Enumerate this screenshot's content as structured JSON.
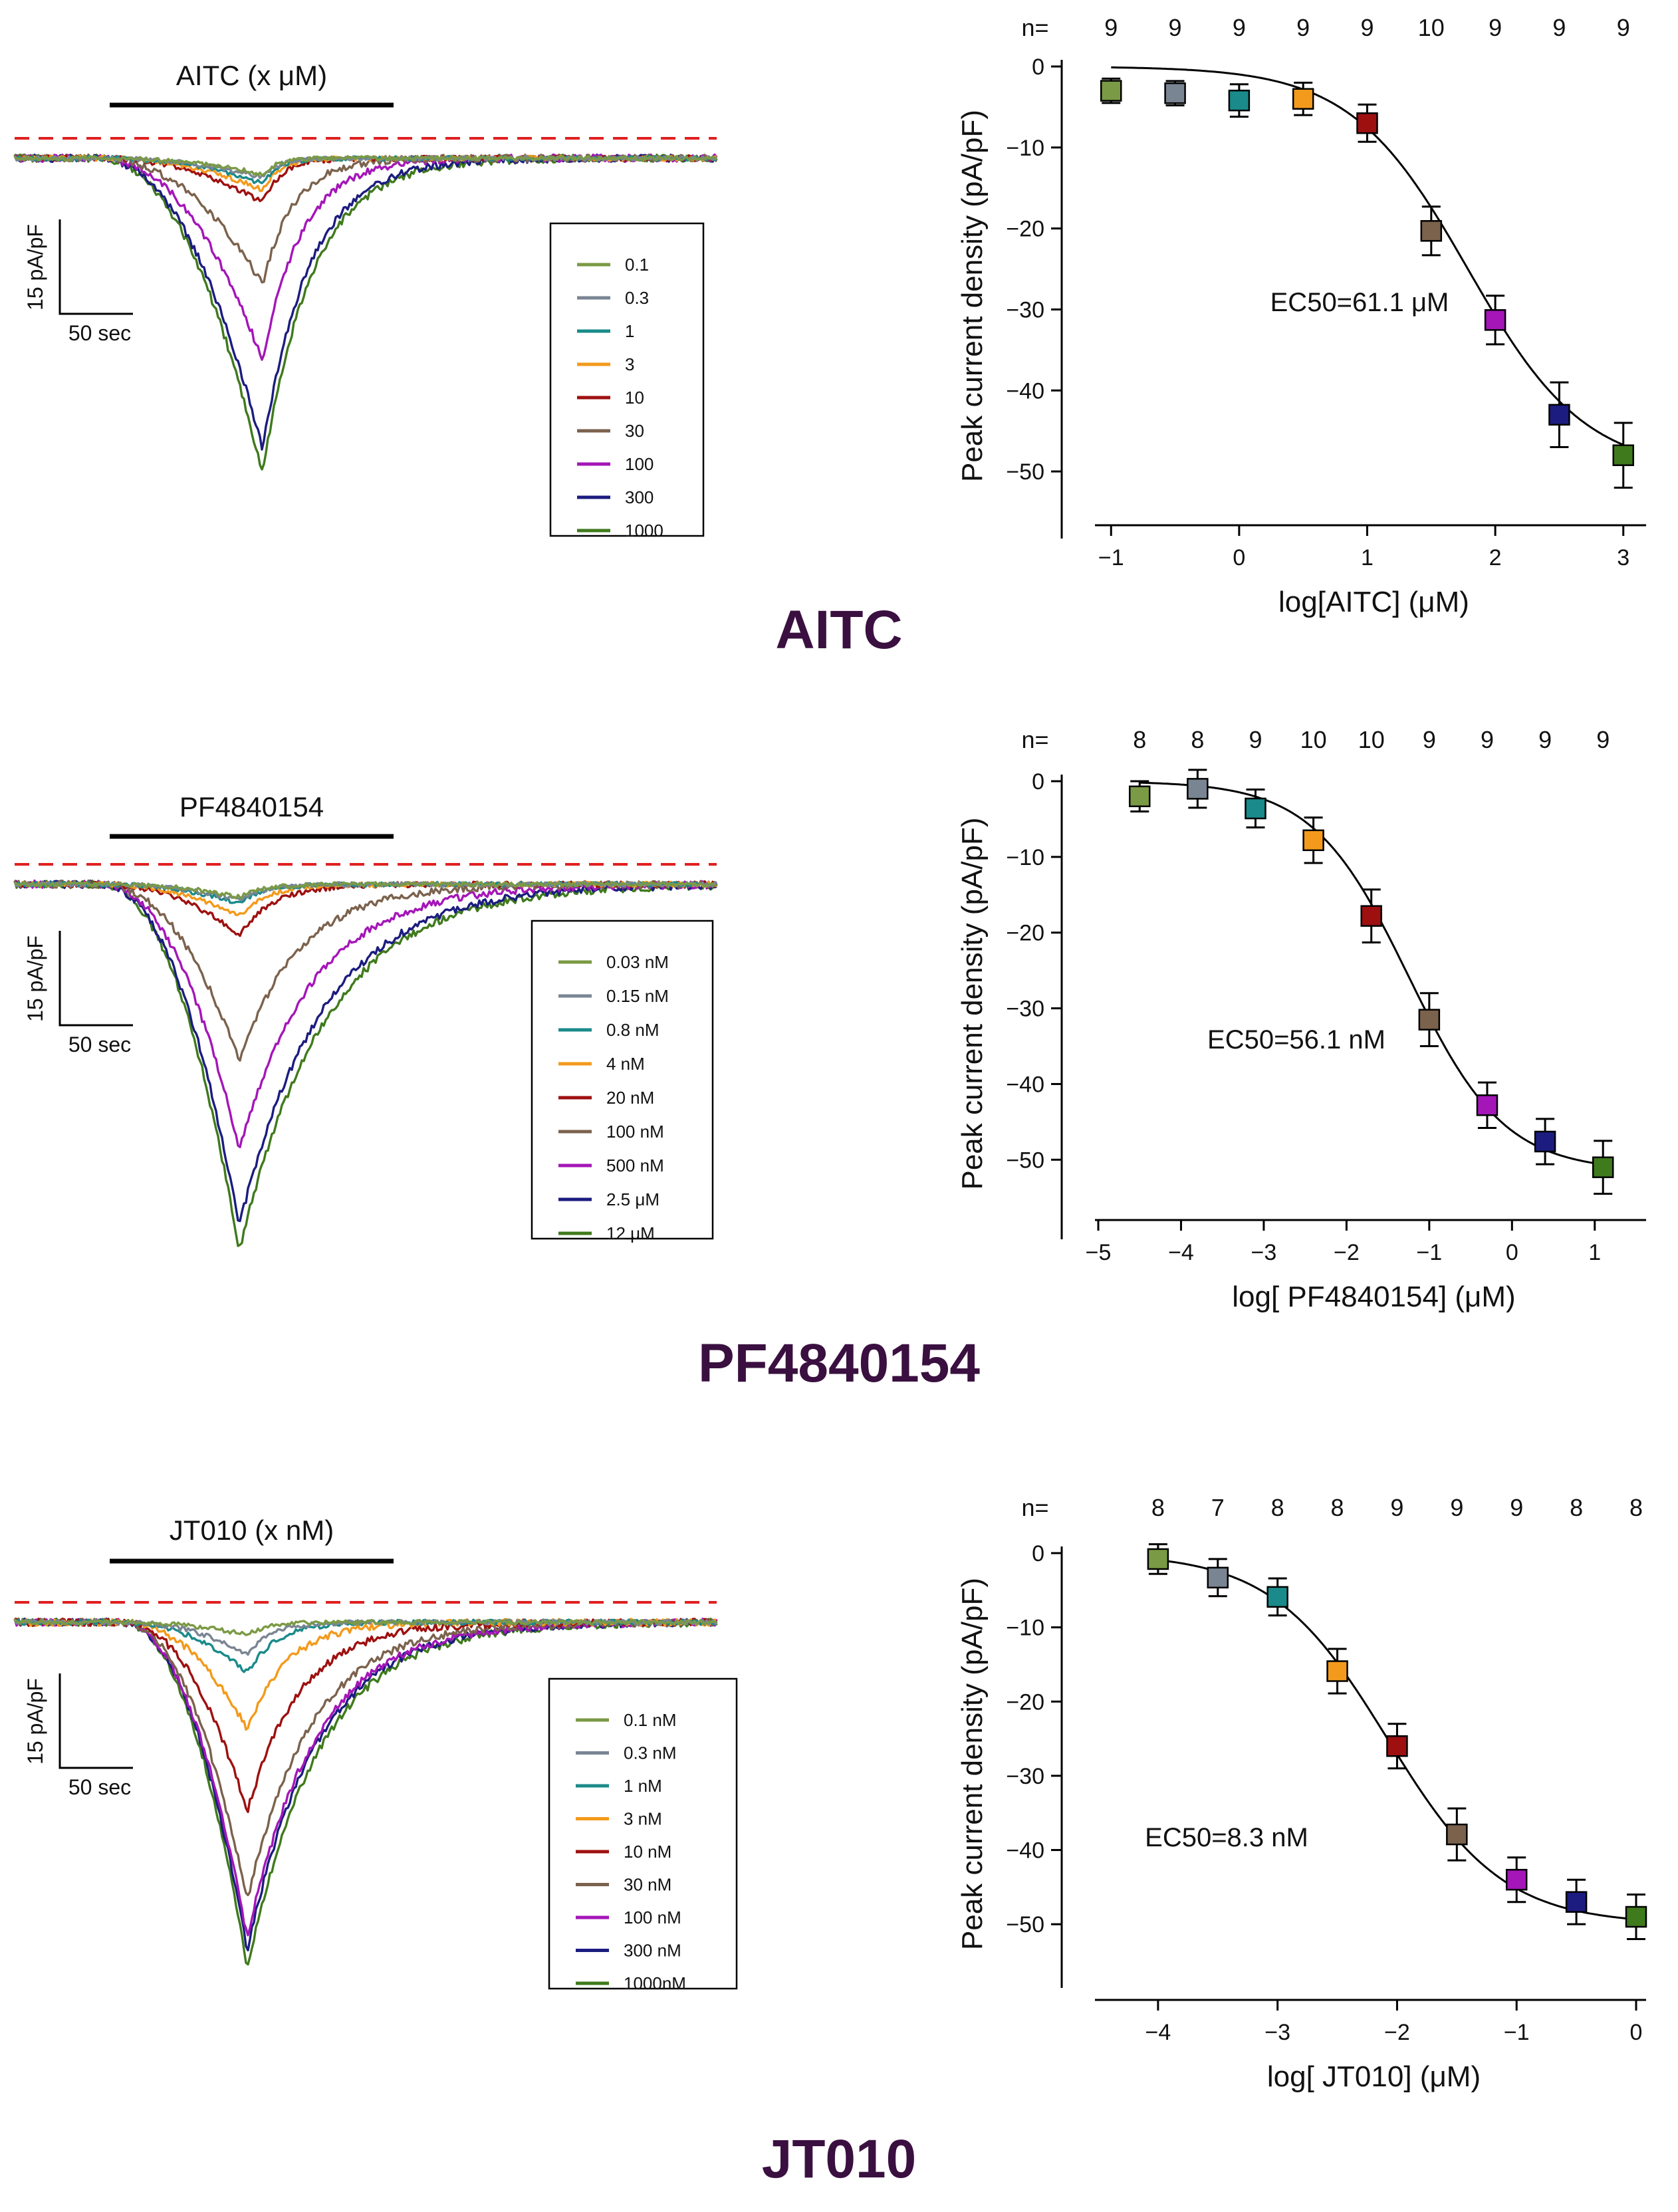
{
  "chart_data": [
    {
      "id": "aitc",
      "type": "scatter",
      "section_title": "AITC",
      "traces": {
        "bar_label": "AITC (x μM)",
        "scale_y": "15 pA/pF",
        "scale_x": "50 sec",
        "legend": [
          "0.1",
          "0.3",
          "1",
          "3",
          "10",
          "30",
          "100",
          "300",
          "1000"
        ],
        "peaks": [
          2.5,
          3,
          4,
          5,
          7,
          20,
          32,
          46,
          50
        ]
      },
      "dose_response": {
        "ylabel": "Peak current density  (pA/pF)",
        "xlabel": "log[AITC] (μM)",
        "n_prefix": "n=",
        "n": [
          "9",
          "9",
          "9",
          "9",
          "9",
          "10",
          "9",
          "9",
          "9"
        ],
        "x": [
          -1,
          -0.5,
          0,
          0.5,
          1,
          1.5,
          2,
          2.5,
          3
        ],
        "y": [
          -3,
          -3.3,
          -4.2,
          -4,
          -7,
          -20.3,
          -31.3,
          -43,
          -48
        ],
        "err": [
          1.5,
          1.5,
          2,
          2,
          2.3,
          3,
          3,
          4,
          4
        ],
        "xlim": [
          -1.1,
          3.1
        ],
        "ylim": [
          -55,
          0
        ],
        "xticks": [
          -1,
          0,
          1,
          2,
          3
        ],
        "yticks": [
          0,
          -10,
          -20,
          -30,
          -40,
          -50
        ],
        "fit": {
          "bottom": -50,
          "logEC50": 1.786,
          "hill": 0.95
        },
        "ec50_label": "EC50=61.1 μM"
      }
    },
    {
      "id": "pf4840154",
      "type": "scatter",
      "section_title": "PF4840154",
      "traces": {
        "bar_label": "PF4840154",
        "scale_y": "15 pA/pF",
        "scale_x": "50 sec",
        "legend": [
          "0.03 nM",
          "0.15 nM",
          "0.8 nM",
          "4 nM",
          "20 nM",
          "100 nM",
          "500 nM",
          "2.5 μM",
          "12 μM"
        ],
        "peaks": [
          2,
          2.5,
          3,
          5,
          8,
          28,
          42,
          54,
          58
        ]
      },
      "dose_response": {
        "ylabel": "Peak current density  (pA/pF)",
        "xlabel": "log[ PF4840154] (μM)",
        "n_prefix": "n=",
        "n": [
          "8",
          "8",
          "9",
          "10",
          "10",
          "9",
          "9",
          "9",
          "9"
        ],
        "x": [
          -4.5,
          -3.8,
          -3.1,
          -2.4,
          -1.7,
          -1.0,
          -0.3,
          0.4,
          1.1
        ],
        "y": [
          -2,
          -1,
          -3.6,
          -7.8,
          -17.8,
          -31.5,
          -42.8,
          -47.6,
          -51
        ],
        "err": [
          2,
          2.5,
          2.5,
          3,
          3.5,
          3.5,
          3,
          3,
          3.5
        ],
        "xlim": [
          -5,
          1.5
        ],
        "ylim": [
          -57,
          0
        ],
        "xticks": [
          -5,
          -4,
          -3,
          -2,
          -1,
          0,
          1
        ],
        "yticks": [
          0,
          -10,
          -20,
          -30,
          -40,
          -50
        ],
        "fit": {
          "bottom": -51.5,
          "logEC50": -1.251,
          "hill": 0.75
        },
        "ec50_label": "EC50=56.1 nM"
      }
    },
    {
      "id": "jt010",
      "type": "scatter",
      "section_title": "JT010",
      "traces": {
        "bar_label": "JT010 (x nM)",
        "scale_y": "15 pA/pF",
        "scale_x": "50 sec",
        "legend": [
          "0.1 nM",
          "0.3 nM",
          "1 nM",
          "3 nM",
          "10 nM",
          "30 nM",
          "100 nM",
          "300 nM",
          "1000nM"
        ],
        "peaks": [
          2,
          5,
          8,
          17,
          30,
          44,
          50,
          52,
          55
        ]
      },
      "dose_response": {
        "ylabel": "Peak current density  (pA/pF)",
        "xlabel": "log[ JT010] (μM)",
        "n_prefix": "n=",
        "n": [
          "8",
          "7",
          "8",
          "8",
          "9",
          "9",
          "9",
          "8",
          "8"
        ],
        "x": [
          -4,
          -3.5,
          -3,
          -2.5,
          -2,
          -1.5,
          -1,
          -0.5,
          0
        ],
        "y": [
          -0.8,
          -3.3,
          -5.9,
          -15.9,
          -26,
          -37.9,
          -44,
          -47,
          -49
        ],
        "err": [
          2,
          2.5,
          2.5,
          3,
          3,
          3.5,
          3,
          3,
          3
        ],
        "xlim": [
          -4.5,
          0
        ],
        "ylim": [
          -55,
          0
        ],
        "xticks": [
          -4,
          -3,
          -2,
          -1,
          0
        ],
        "yticks": [
          0,
          -10,
          -20,
          -30,
          -40,
          -50
        ],
        "fit": {
          "bottom": -50,
          "logEC50": -2.081,
          "hill": 0.9
        },
        "ec50_label": "EC50=8.3 nM"
      }
    }
  ],
  "colors": {
    "series": [
      "#7a9a45",
      "#7a8593",
      "#1a8a8a",
      "#f39a1c",
      "#9e1010",
      "#7b624d",
      "#a416b8",
      "#1c1c80",
      "#3f7a1c"
    ],
    "baseline_dash": "#e02020",
    "title": "#3a1040"
  }
}
